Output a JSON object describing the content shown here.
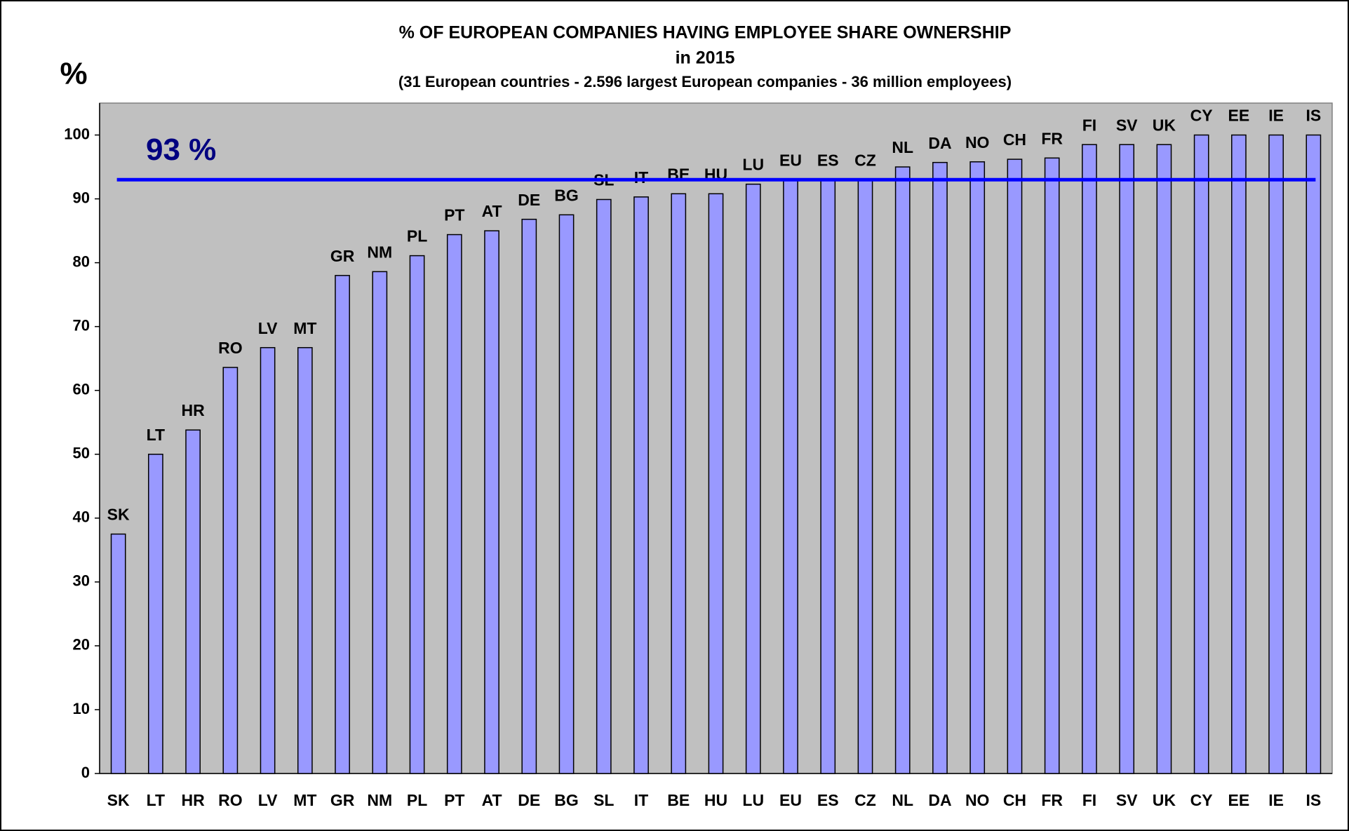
{
  "chart_data": {
    "type": "bar",
    "title": "% OF EUROPEAN  COMPANIES  HAVING  EMPLOYEE  SHARE OWNERSHIP",
    "subtitle": "in 2015",
    "note": "(31 European countries - 2.596 largest European companies - 36 million employees)",
    "y_label": "%",
    "categories": [
      "SK",
      "LT",
      "HR",
      "RO",
      "LV",
      "MT",
      "GR",
      "NM",
      "PL",
      "PT",
      "AT",
      "DE",
      "BG",
      "SL",
      "IT",
      "BE",
      "HU",
      "LU",
      "EU",
      "ES",
      "CZ",
      "NL",
      "DA",
      "NO",
      "CH",
      "FR",
      "FI",
      "SV",
      "UK",
      "CY",
      "EE",
      "IE",
      "IS"
    ],
    "values": [
      37.5,
      50,
      53.8,
      63.6,
      66.7,
      66.7,
      78,
      78.6,
      81.1,
      84.4,
      85,
      86.8,
      87.5,
      89.9,
      90.3,
      90.8,
      90.8,
      92.3,
      93,
      93,
      93,
      95,
      95.7,
      95.8,
      96.2,
      96.4,
      98.5,
      98.5,
      98.5,
      100,
      100,
      100,
      100
    ],
    "color": "#9999ff",
    "reference_line": {
      "value": 93,
      "label": "93 %",
      "color": "#0000ff"
    },
    "ylim": [
      0,
      105
    ],
    "yticks": [
      0,
      10,
      20,
      30,
      40,
      50,
      60,
      70,
      80,
      90,
      100
    ],
    "plot_background": "#c0c0c0"
  }
}
